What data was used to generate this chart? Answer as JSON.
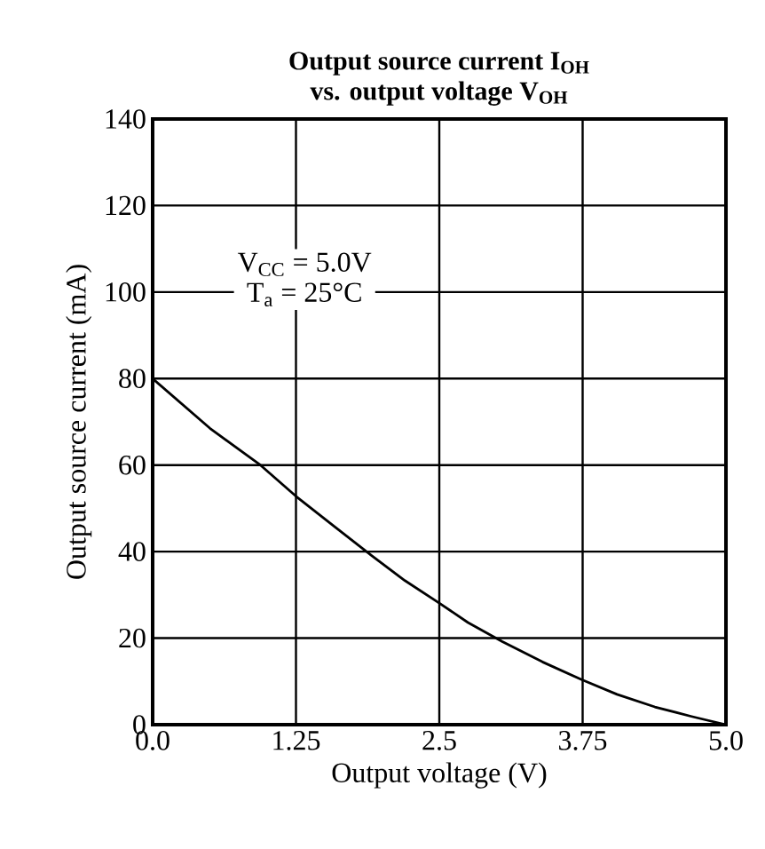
{
  "chart_data": {
    "type": "line",
    "title": "Output source current I$_{OH}$",
    "subtitle": "vs. output voltage V$_{OH}$",
    "xlabel": "Output voltage (V)",
    "ylabel": "Output source current (mA)",
    "annotations": [
      "V$_{CC}$ = 5.0V",
      "T$_{a}$ = 25°C"
    ],
    "x": [
      0,
      0.5,
      0.94,
      1.25,
      1.6,
      1.91,
      2.2,
      2.5,
      2.75,
      3.05,
      3.4,
      3.75,
      4.05,
      4.38,
      4.7,
      5
    ],
    "series": [
      {
        "color": "#000000",
        "values": [
          80,
          68.5,
          60,
          52.8,
          45.5,
          39.1,
          33.3,
          28.1,
          23.6,
          19.2,
          14.5,
          10.3,
          7,
          4.1,
          1.9,
          0
        ]
      }
    ],
    "xlim": [
      0,
      5
    ],
    "ylim": [
      0,
      140
    ],
    "xticks": [
      {
        "value": 0,
        "label": "0.0"
      },
      1.25,
      2.5,
      3.75,
      {
        "value": 5,
        "label": "5.0"
      }
    ],
    "yticks": [
      0,
      20,
      40,
      60,
      80,
      100,
      120,
      140
    ],
    "grid": true,
    "marker": "none",
    "line_style": "solid"
  }
}
